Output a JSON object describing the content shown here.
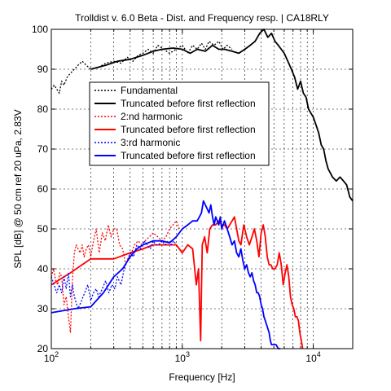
{
  "chart_data": {
    "type": "line",
    "title": "Trolldist v. 6.0 Beta - Dist. and Frequency resp. | CA18RLY",
    "xlabel": "Frequency [Hz]",
    "ylabel": "SPL [dB] @ 50 cm ref 20 uPa, 2.83V",
    "xscale": "log",
    "xlim": [
      100,
      20000
    ],
    "ylim": [
      20,
      100
    ],
    "grid": true,
    "legend_position": "upper-center",
    "x_ticks": [
      {
        "value": 100,
        "base": "10",
        "exp": "2"
      },
      {
        "value": 1000,
        "base": "10",
        "exp": "3"
      },
      {
        "value": 10000,
        "base": "10",
        "exp": "4"
      }
    ],
    "y_ticks": [
      {
        "value": 20,
        "label": "20"
      },
      {
        "value": 30,
        "label": "30"
      },
      {
        "value": 40,
        "label": "40"
      },
      {
        "value": 50,
        "label": "50"
      },
      {
        "value": 60,
        "label": "60"
      },
      {
        "value": 70,
        "label": "70"
      },
      {
        "value": 80,
        "label": "80"
      },
      {
        "value": 90,
        "label": "90"
      },
      {
        "value": 100,
        "label": "100"
      }
    ],
    "series": [
      {
        "name": "Fundamental",
        "color": "#000000",
        "style": "dotted",
        "points": [
          [
            100,
            85
          ],
          [
            105,
            86
          ],
          [
            110,
            85
          ],
          [
            115,
            84
          ],
          [
            120,
            87
          ],
          [
            125,
            86
          ],
          [
            132,
            88
          ],
          [
            140,
            89
          ],
          [
            150,
            90
          ],
          [
            160,
            91
          ],
          [
            172,
            92
          ],
          [
            185,
            91
          ],
          [
            200,
            90
          ],
          [
            230,
            90.5
          ],
          [
            260,
            91.5
          ],
          [
            300,
            92
          ],
          [
            340,
            91.5
          ],
          [
            380,
            93
          ],
          [
            420,
            92
          ],
          [
            460,
            93.5
          ],
          [
            500,
            94
          ],
          [
            550,
            95
          ],
          [
            600,
            94
          ],
          [
            650,
            96
          ],
          [
            720,
            95
          ],
          [
            800,
            94
          ],
          [
            900,
            95
          ],
          [
            1000,
            96
          ],
          [
            1100,
            94
          ],
          [
            1200,
            96
          ],
          [
            1300,
            95
          ],
          [
            1400,
            96.5
          ],
          [
            1500,
            95
          ],
          [
            1600,
            97
          ],
          [
            1750,
            96
          ],
          [
            1900,
            97
          ],
          [
            2050,
            95
          ],
          [
            2200,
            96
          ],
          [
            2400,
            95
          ]
        ]
      },
      {
        "name": "Truncated before first reflection",
        "color": "#000000",
        "style": "solid",
        "points": [
          [
            200,
            90
          ],
          [
            260,
            91
          ],
          [
            320,
            92
          ],
          [
            400,
            92.5
          ],
          [
            500,
            93.5
          ],
          [
            600,
            94.5
          ],
          [
            700,
            95
          ],
          [
            850,
            95.3
          ],
          [
            1000,
            95
          ],
          [
            1150,
            94
          ],
          [
            1300,
            95
          ],
          [
            1500,
            94.5
          ],
          [
            1700,
            96
          ],
          [
            1900,
            95
          ],
          [
            2100,
            95
          ],
          [
            2400,
            94.5
          ],
          [
            2700,
            94
          ],
          [
            3000,
            95
          ],
          [
            3300,
            96
          ],
          [
            3600,
            97
          ],
          [
            3900,
            99
          ],
          [
            4200,
            100
          ],
          [
            4500,
            98
          ],
          [
            4800,
            99
          ],
          [
            5100,
            97
          ],
          [
            5400,
            96
          ],
          [
            5700,
            95
          ],
          [
            6000,
            94
          ],
          [
            6400,
            92
          ],
          [
            6800,
            90
          ],
          [
            7200,
            88
          ],
          [
            7600,
            85
          ],
          [
            8000,
            87
          ],
          [
            8400,
            84
          ],
          [
            8800,
            83
          ],
          [
            9200,
            80
          ],
          [
            9600,
            79
          ],
          [
            10000,
            78
          ],
          [
            10500,
            76
          ],
          [
            11000,
            74
          ],
          [
            11500,
            71
          ],
          [
            12000,
            70
          ],
          [
            12500,
            67
          ],
          [
            13000,
            65
          ],
          [
            13500,
            64
          ],
          [
            14000,
            63
          ],
          [
            15000,
            62
          ],
          [
            16000,
            63
          ],
          [
            17000,
            62
          ],
          [
            18000,
            61
          ],
          [
            19000,
            58
          ],
          [
            20000,
            57
          ]
        ]
      },
      {
        "name": "2:nd harmonic",
        "color": "#ff0000",
        "style": "dotted",
        "points": [
          [
            100,
            38
          ],
          [
            104,
            40
          ],
          [
            108,
            37
          ],
          [
            112,
            36
          ],
          [
            116,
            39
          ],
          [
            120,
            38
          ],
          [
            125,
            31
          ],
          [
            130,
            33
          ],
          [
            135,
            28
          ],
          [
            140,
            24
          ],
          [
            145,
            37
          ],
          [
            150,
            44
          ],
          [
            155,
            46
          ],
          [
            160,
            45
          ],
          [
            166,
            44
          ],
          [
            172,
            46
          ],
          [
            178,
            43
          ],
          [
            185,
            45
          ],
          [
            192,
            46
          ],
          [
            200,
            43
          ],
          [
            210,
            47
          ],
          [
            220,
            50
          ],
          [
            232,
            44
          ],
          [
            245,
            49
          ],
          [
            258,
            47
          ],
          [
            272,
            51
          ],
          [
            286,
            48
          ],
          [
            300,
            50
          ],
          [
            316,
            50
          ],
          [
            332,
            46
          ],
          [
            350,
            45
          ],
          [
            370,
            41
          ],
          [
            390,
            43
          ],
          [
            410,
            44
          ],
          [
            430,
            46
          ],
          [
            460,
            47
          ],
          [
            490,
            46
          ],
          [
            520,
            47
          ],
          [
            560,
            48
          ],
          [
            600,
            49
          ],
          [
            650,
            48
          ],
          [
            700,
            47
          ],
          [
            750,
            48
          ],
          [
            800,
            50
          ],
          [
            850,
            51
          ],
          [
            900,
            52
          ],
          [
            950,
            50
          ]
        ]
      },
      {
        "name": "Truncated before first reflection",
        "color": "#ff0000",
        "style": "solid",
        "points": [
          [
            100,
            36
          ],
          [
            140,
            39
          ],
          [
            200,
            42.5
          ],
          [
            300,
            42.5
          ],
          [
            400,
            44
          ],
          [
            500,
            45
          ],
          [
            600,
            46
          ],
          [
            700,
            46
          ],
          [
            800,
            46
          ],
          [
            900,
            46
          ],
          [
            1000,
            44
          ],
          [
            1100,
            46
          ],
          [
            1200,
            45
          ],
          [
            1280,
            36
          ],
          [
            1330,
            40
          ],
          [
            1380,
            22
          ],
          [
            1420,
            46
          ],
          [
            1480,
            48
          ],
          [
            1550,
            44
          ],
          [
            1620,
            50
          ],
          [
            1700,
            51
          ],
          [
            1800,
            51
          ],
          [
            1900,
            52
          ],
          [
            2000,
            51
          ],
          [
            2100,
            51
          ],
          [
            2200,
            50
          ],
          [
            2300,
            51
          ],
          [
            2400,
            52
          ],
          [
            2500,
            53
          ],
          [
            2600,
            50
          ],
          [
            2700,
            47
          ],
          [
            2800,
            46
          ],
          [
            2950,
            51
          ],
          [
            3100,
            48
          ],
          [
            3250,
            46
          ],
          [
            3400,
            48
          ],
          [
            3550,
            50
          ],
          [
            3700,
            47
          ],
          [
            3850,
            43
          ],
          [
            4000,
            49
          ],
          [
            4150,
            51
          ],
          [
            4300,
            48
          ],
          [
            4450,
            43
          ],
          [
            4600,
            41
          ],
          [
            4750,
            41
          ],
          [
            4900,
            40
          ],
          [
            5100,
            40
          ],
          [
            5300,
            41
          ],
          [
            5500,
            44
          ],
          [
            5700,
            41
          ],
          [
            5900,
            36
          ],
          [
            6100,
            39
          ],
          [
            6300,
            41
          ],
          [
            6500,
            38
          ],
          [
            6700,
            33
          ],
          [
            6900,
            31
          ],
          [
            7100,
            30
          ],
          [
            7300,
            28
          ],
          [
            7500,
            28
          ],
          [
            7700,
            27
          ],
          [
            7900,
            24
          ],
          [
            8100,
            22
          ],
          [
            8300,
            20
          ]
        ]
      },
      {
        "name": "3:rd harmonic",
        "color": "#0000ff",
        "style": "dotted",
        "points": [
          [
            100,
            38
          ],
          [
            105,
            36
          ],
          [
            110,
            34
          ],
          [
            115,
            36
          ],
          [
            120,
            34
          ],
          [
            125,
            38
          ],
          [
            130,
            35
          ],
          [
            135,
            39
          ],
          [
            140,
            33
          ],
          [
            145,
            36
          ],
          [
            150,
            33
          ],
          [
            160,
            30
          ],
          [
            170,
            32
          ],
          [
            180,
            34
          ],
          [
            190,
            36
          ],
          [
            200,
            32
          ],
          [
            210,
            34
          ],
          [
            220,
            35
          ],
          [
            230,
            33
          ],
          [
            245,
            35
          ],
          [
            260,
            37
          ],
          [
            275,
            34
          ],
          [
            290,
            36
          ],
          [
            305,
            35
          ],
          [
            320,
            38
          ],
          [
            340,
            36
          ],
          [
            360,
            40
          ],
          [
            380,
            42
          ],
          [
            400,
            44
          ],
          [
            425,
            43
          ],
          [
            450,
            46
          ],
          [
            480,
            45
          ],
          [
            510,
            47
          ],
          [
            540,
            46
          ],
          [
            570,
            45
          ],
          [
            600,
            47
          ],
          [
            630,
            46
          ],
          [
            660,
            46
          ],
          [
            700,
            47
          ],
          [
            740,
            46
          ],
          [
            780,
            47
          ],
          [
            820,
            46
          ],
          [
            860,
            47
          ],
          [
            900,
            46
          ]
        ]
      },
      {
        "name": "Truncated before first reflection",
        "color": "#0000ff",
        "style": "solid",
        "points": [
          [
            100,
            29
          ],
          [
            150,
            30
          ],
          [
            200,
            30.5
          ],
          [
            250,
            34
          ],
          [
            300,
            38
          ],
          [
            350,
            40
          ],
          [
            400,
            43
          ],
          [
            450,
            45
          ],
          [
            500,
            46
          ],
          [
            600,
            47
          ],
          [
            700,
            47
          ],
          [
            800,
            46.5
          ],
          [
            900,
            48
          ],
          [
            1000,
            50
          ],
          [
            1100,
            51
          ],
          [
            1200,
            52
          ],
          [
            1300,
            52
          ],
          [
            1400,
            54
          ],
          [
            1450,
            57
          ],
          [
            1500,
            56
          ],
          [
            1550,
            55
          ],
          [
            1600,
            54
          ],
          [
            1650,
            56
          ],
          [
            1700,
            53
          ],
          [
            1750,
            51
          ],
          [
            1800,
            53
          ],
          [
            1850,
            52
          ],
          [
            1900,
            51
          ],
          [
            1950,
            53
          ],
          [
            2000,
            50
          ],
          [
            2100,
            52
          ],
          [
            2200,
            50
          ],
          [
            2300,
            48
          ],
          [
            2400,
            46
          ],
          [
            2500,
            47
          ],
          [
            2600,
            44
          ],
          [
            2700,
            43
          ],
          [
            2800,
            45
          ],
          [
            2900,
            42
          ],
          [
            3000,
            40
          ],
          [
            3100,
            41
          ],
          [
            3200,
            39
          ],
          [
            3300,
            38
          ],
          [
            3400,
            39
          ],
          [
            3500,
            37
          ],
          [
            3600,
            36
          ],
          [
            3700,
            34
          ],
          [
            3800,
            34
          ],
          [
            3900,
            33
          ],
          [
            4000,
            31
          ],
          [
            4100,
            30
          ],
          [
            4200,
            28
          ],
          [
            4300,
            27
          ],
          [
            4400,
            26
          ],
          [
            4500,
            25
          ],
          [
            4600,
            24
          ],
          [
            4700,
            22
          ],
          [
            4800,
            21
          ],
          [
            5000,
            21
          ],
          [
            5200,
            21
          ],
          [
            5400,
            20
          ],
          [
            5600,
            20
          ]
        ]
      }
    ]
  }
}
